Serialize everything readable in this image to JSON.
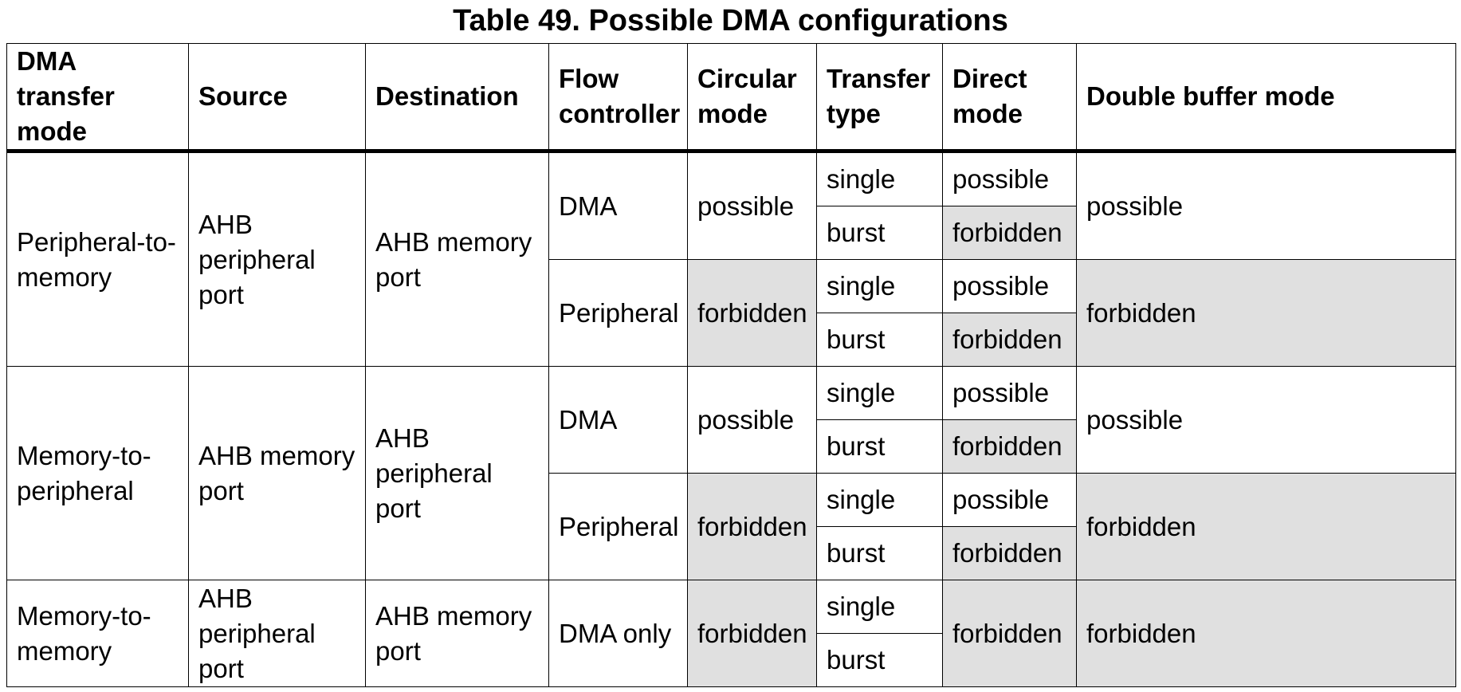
{
  "title": "Table 49. Possible DMA configurations",
  "headers": {
    "mode": "DMA transfer mode",
    "source": "Source",
    "destination": "Destination",
    "flow": "Flow controller",
    "circular": "Circular mode",
    "transfer": "Transfer type",
    "direct": "Direct mode",
    "double": "Double buffer mode"
  },
  "groups": [
    {
      "mode": "Peripheral-to-memory",
      "source": "AHB peripheral port",
      "destination": "AHB memory port",
      "flows": [
        {
          "controller": "DMA",
          "circular": "possible",
          "double": "possible",
          "rows": [
            {
              "transfer": "single",
              "direct": "possible"
            },
            {
              "transfer": "burst",
              "direct": "forbidden"
            }
          ]
        },
        {
          "controller": "Peripheral",
          "circular": "forbidden",
          "double": "forbidden",
          "rows": [
            {
              "transfer": "single",
              "direct": "possible"
            },
            {
              "transfer": "burst",
              "direct": "forbidden"
            }
          ]
        }
      ]
    },
    {
      "mode": "Memory-to-peripheral",
      "source": "AHB memory port",
      "destination": "AHB peripheral port",
      "flows": [
        {
          "controller": "DMA",
          "circular": "possible",
          "double": "possible",
          "rows": [
            {
              "transfer": "single",
              "direct": "possible"
            },
            {
              "transfer": "burst",
              "direct": "forbidden"
            }
          ]
        },
        {
          "controller": "Peripheral",
          "circular": "forbidden",
          "double": "forbidden",
          "rows": [
            {
              "transfer": "single",
              "direct": "possible"
            },
            {
              "transfer": "burst",
              "direct": "forbidden"
            }
          ]
        }
      ]
    },
    {
      "mode": "Memory-to-memory",
      "source": "AHB peripheral port",
      "destination": "AHB memory port",
      "flows": [
        {
          "controller": "DMA only",
          "circular": "forbidden",
          "double": "forbidden",
          "direct": "forbidden",
          "rows": [
            {
              "transfer": "single"
            },
            {
              "transfer": "burst"
            }
          ]
        }
      ]
    }
  ],
  "colors": {
    "shaded": "#e0e0e0",
    "border": "#000000"
  }
}
